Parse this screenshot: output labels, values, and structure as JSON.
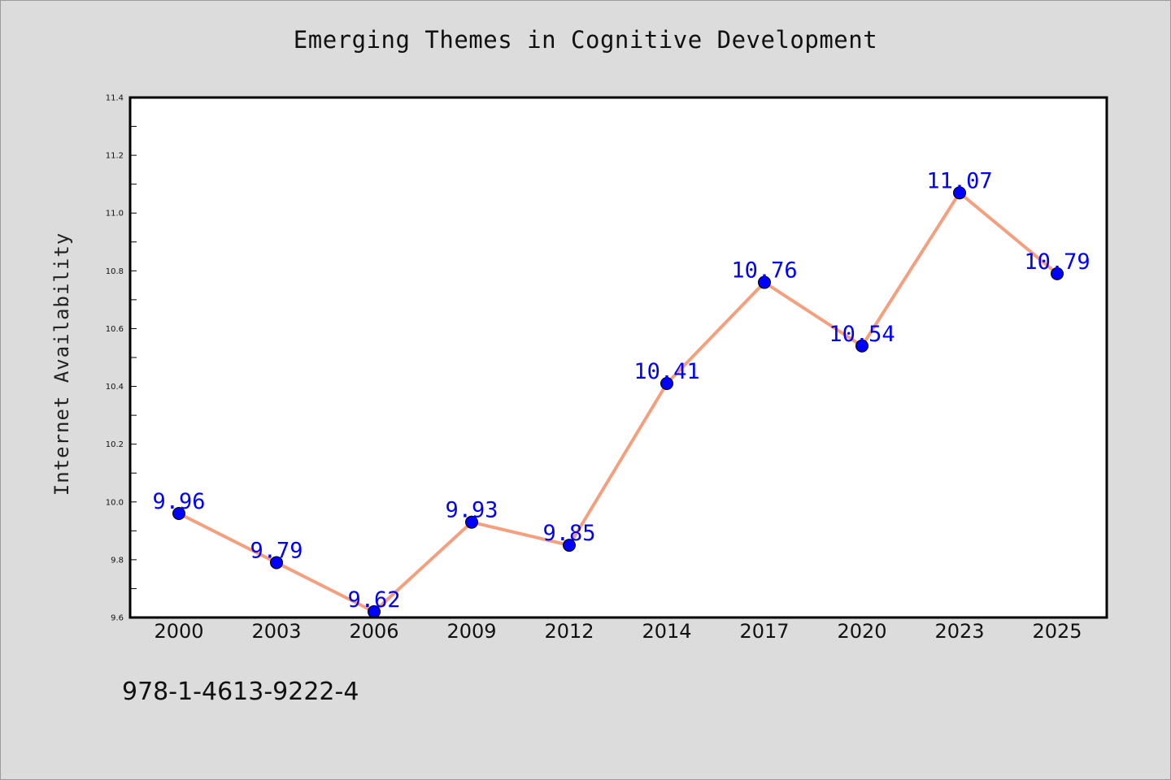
{
  "page": {
    "background": "#dcdcdc",
    "isbn": "978-1-4613-9222-4"
  },
  "chart_data": {
    "type": "line",
    "title": "Emerging Themes in Cognitive Development",
    "xlabel": "",
    "ylabel": "Internet Availability",
    "categories": [
      "2000",
      "2003",
      "2006",
      "2009",
      "2012",
      "2014",
      "2017",
      "2020",
      "2023",
      "2025"
    ],
    "series": [
      {
        "values": [
          9.96,
          9.79,
          9.62,
          9.93,
          9.85,
          10.41,
          10.76,
          10.54,
          11.07,
          10.79
        ],
        "data_labels": [
          "9.96",
          "9.79",
          "9.62",
          "9.93",
          "9.85",
          "10.41",
          "10.76",
          "10.54",
          "11.07",
          "10.79"
        ],
        "line_color": "#f4a07f",
        "marker_color": "#0000ff"
      }
    ],
    "ylim": [
      9.6,
      11.4
    ],
    "yticks": [
      "9.6",
      "9.8",
      "10.0",
      "10.2",
      "10.4",
      "10.6",
      "10.8",
      "11.0",
      "11.2",
      "11.4"
    ],
    "ytick_values": [
      9.6,
      9.8,
      10.0,
      10.2,
      10.4,
      10.6,
      10.8,
      11.0,
      11.2,
      11.4
    ],
    "grid": false,
    "legend": "none",
    "data_label_color": "#0000ff"
  }
}
